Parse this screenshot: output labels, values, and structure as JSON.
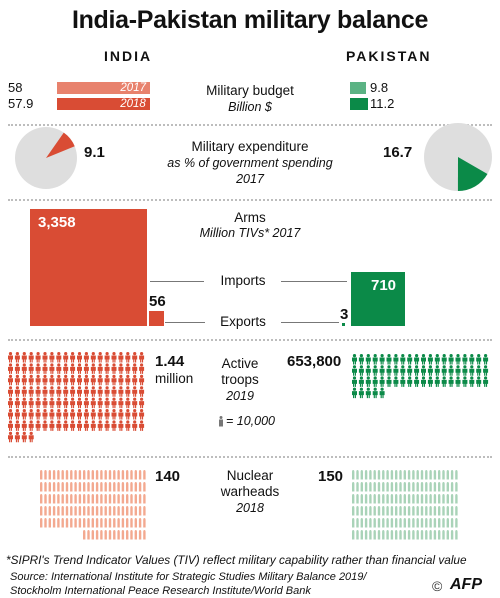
{
  "title": "India-Pakistan military balance",
  "india_label": "INDIA",
  "pakistan_label": "PAKISTAN",
  "colors": {
    "india_dark": "#d94c34",
    "india_light": "#e8826d",
    "pak_dark": "#0b8a48",
    "pak_light": "#5bb384",
    "pie_bg": "#dedede",
    "nuke_india": "#f3a990",
    "nuke_pak": "#a9d3b8"
  },
  "budget": {
    "label": "Military budget",
    "unit": "Billion $",
    "india_2017": "58",
    "india_2018": "57.9",
    "year_2017": "2017",
    "year_2018": "2018",
    "pak_2017": "9.8",
    "pak_2018": "11.2"
  },
  "expenditure": {
    "label": "Military expenditure",
    "sub1": "as % of government spending",
    "sub2": "2017",
    "india": "9.1",
    "pakistan": "16.7"
  },
  "arms": {
    "label": "Arms",
    "sub": "Million TIVs* 2017",
    "imports_label": "Imports",
    "exports_label": "Exports",
    "india_imports": "3,358",
    "india_exports": "56",
    "pak_imports": "710",
    "pak_exports": "3"
  },
  "troops": {
    "label1": "Active",
    "label2": "troops",
    "year": "2019",
    "india_val": "1.44",
    "india_unit": "million",
    "pak_val": "653,800",
    "legend": "= 10,000"
  },
  "nuclear": {
    "label1": "Nuclear",
    "label2": "warheads",
    "year": "2018",
    "india": "140",
    "pakistan": "150"
  },
  "footnote": "*SIPRI's Trend Indicator Values (TIV) reflect military capability rather than financial value",
  "source1": "Source: International Institute for Strategic Studies Military Balance 2019/",
  "source2": "Stockholm International Peace Research Institute/World Bank",
  "credit": "AFP",
  "chart_data": [
    {
      "type": "bar",
      "title": "Military budget",
      "ylabel": "Billion $",
      "categories": [
        "2017",
        "2018"
      ],
      "series": [
        {
          "name": "INDIA",
          "values": [
            58,
            57.9
          ]
        },
        {
          "name": "PAKISTAN",
          "values": [
            9.8,
            11.2
          ]
        }
      ]
    },
    {
      "type": "pie",
      "title": "Military expenditure",
      "subtitle": "as % of government spending 2017",
      "series": [
        {
          "name": "INDIA",
          "values": [
            9.1
          ]
        },
        {
          "name": "PAKISTAN",
          "values": [
            16.7
          ]
        }
      ]
    },
    {
      "type": "bar",
      "title": "Arms",
      "ylabel": "Million TIVs* 2017",
      "categories": [
        "Imports",
        "Exports"
      ],
      "series": [
        {
          "name": "INDIA",
          "values": [
            3358,
            56
          ]
        },
        {
          "name": "PAKISTAN",
          "values": [
            710,
            3
          ]
        }
      ]
    },
    {
      "type": "bar",
      "title": "Active troops 2019",
      "categories": [
        "INDIA",
        "PAKISTAN"
      ],
      "values": [
        1440000,
        653800
      ]
    },
    {
      "type": "bar",
      "title": "Nuclear warheads 2018",
      "categories": [
        "INDIA",
        "PAKISTAN"
      ],
      "values": [
        140,
        150
      ]
    }
  ]
}
